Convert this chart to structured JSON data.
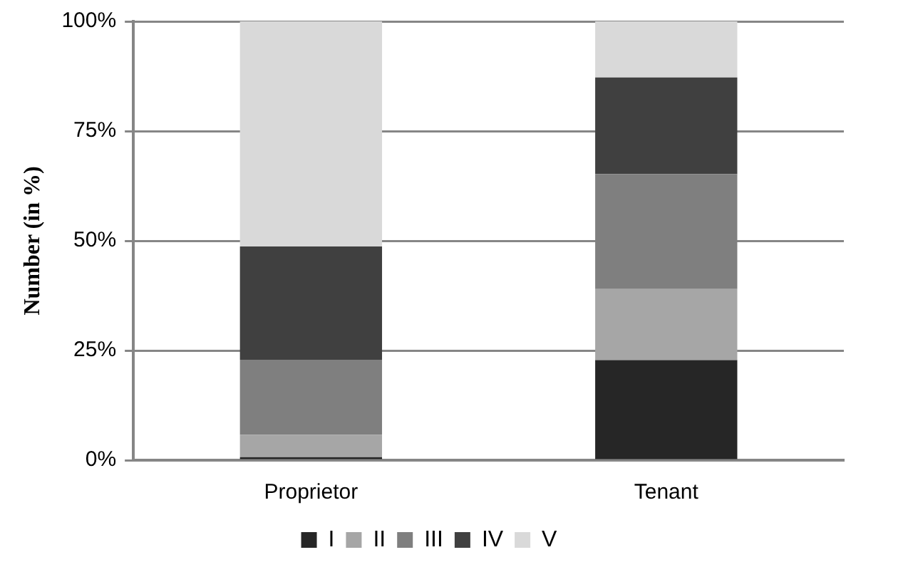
{
  "chart_data": {
    "type": "bar",
    "stacked": true,
    "ylabel": "Number (in %)",
    "categories": [
      "Proprietor",
      "Tenant"
    ],
    "series": [
      {
        "name": "I",
        "color": "#262626",
        "values": [
          0.7,
          22.8
        ]
      },
      {
        "name": "II",
        "color": "#a6a6a6",
        "values": [
          5.1,
          16.2
        ]
      },
      {
        "name": "III",
        "color": "#7f7f7f",
        "values": [
          17.1,
          26.2
        ]
      },
      {
        "name": "IV",
        "color": "#404040",
        "values": [
          25.8,
          22.0
        ]
      },
      {
        "name": "V",
        "color": "#d9d9d9",
        "values": [
          51.3,
          12.8
        ]
      }
    ],
    "ylim": [
      0,
      100
    ],
    "yticks": [
      {
        "value": 0,
        "label": "0%"
      },
      {
        "value": 25,
        "label": "25%"
      },
      {
        "value": 50,
        "label": "50%"
      },
      {
        "value": 75,
        "label": "75%"
      },
      {
        "value": 100,
        "label": "100%"
      }
    ],
    "grid": "y",
    "legend": "bottom"
  }
}
